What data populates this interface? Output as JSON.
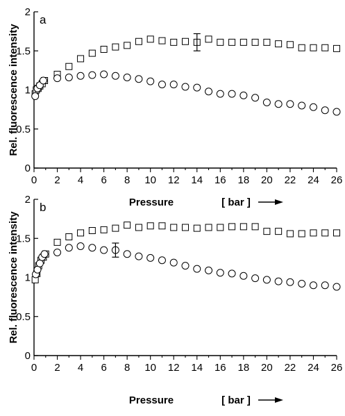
{
  "chart_data": [
    {
      "type": "scatter",
      "panel_label": "a",
      "xlabel": "Pressure",
      "xunit": "[ bar ]",
      "ylabel": "Rel. fluorescence intensity",
      "xlim": [
        0,
        26
      ],
      "ylim": [
        0,
        2
      ],
      "xticks": [
        0,
        2,
        4,
        6,
        8,
        10,
        12,
        14,
        16,
        18,
        20,
        22,
        24,
        26
      ],
      "yticks": [
        0,
        0.5,
        1,
        1.5,
        2
      ],
      "ytick_labels": [
        "0",
        "0.5",
        "1",
        "1.5",
        "2"
      ],
      "grid": false,
      "series": [
        {
          "marker": "square",
          "points": [
            [
              0.1,
              0.95
            ],
            [
              0.2,
              1.0
            ],
            [
              0.35,
              1.02
            ],
            [
              0.5,
              1.05
            ],
            [
              0.7,
              1.08
            ],
            [
              0.9,
              1.12
            ],
            [
              2,
              1.2
            ],
            [
              3,
              1.3
            ],
            [
              4,
              1.4
            ],
            [
              5,
              1.47
            ],
            [
              6,
              1.52
            ],
            [
              7,
              1.55
            ],
            [
              8,
              1.57
            ],
            [
              9,
              1.62
            ],
            [
              10,
              1.65
            ],
            [
              11,
              1.63
            ],
            [
              12,
              1.61
            ],
            [
              13,
              1.62
            ],
            [
              14,
              1.61
            ],
            [
              15,
              1.65
            ],
            [
              16,
              1.61
            ],
            [
              17,
              1.61
            ],
            [
              18,
              1.61
            ],
            [
              19,
              1.61
            ],
            [
              20,
              1.61
            ],
            [
              21,
              1.59
            ],
            [
              22,
              1.58
            ],
            [
              23,
              1.54
            ],
            [
              24,
              1.54
            ],
            [
              25,
              1.54
            ],
            [
              26,
              1.53
            ]
          ],
          "error_bars": [
            {
              "x": 14,
              "y": 1.61,
              "low": 1.5,
              "high": 1.72
            }
          ]
        },
        {
          "marker": "circle",
          "points": [
            [
              0.1,
              0.92
            ],
            [
              0.3,
              1.02
            ],
            [
              0.5,
              1.06
            ],
            [
              0.8,
              1.12
            ],
            [
              2,
              1.15
            ],
            [
              3,
              1.16
            ],
            [
              4,
              1.18
            ],
            [
              5,
              1.19
            ],
            [
              6,
              1.2
            ],
            [
              7,
              1.18
            ],
            [
              8,
              1.16
            ],
            [
              9,
              1.14
            ],
            [
              10,
              1.11
            ],
            [
              11,
              1.07
            ],
            [
              12,
              1.07
            ],
            [
              13,
              1.04
            ],
            [
              14,
              1.03
            ],
            [
              15,
              0.98
            ],
            [
              16,
              0.95
            ],
            [
              17,
              0.95
            ],
            [
              18,
              0.93
            ],
            [
              19,
              0.9
            ],
            [
              20,
              0.84
            ],
            [
              21,
              0.82
            ],
            [
              22,
              0.82
            ],
            [
              23,
              0.8
            ],
            [
              24,
              0.78
            ],
            [
              25,
              0.74
            ],
            [
              26,
              0.72
            ]
          ]
        }
      ]
    },
    {
      "type": "scatter",
      "panel_label": "b",
      "xlabel": "Pressure",
      "xunit": "[ bar ]",
      "ylabel": "Rel. fluorescence intensity",
      "xlim": [
        0,
        26
      ],
      "ylim": [
        0,
        2
      ],
      "xticks": [
        0,
        2,
        4,
        6,
        8,
        10,
        12,
        14,
        16,
        18,
        20,
        22,
        24,
        26
      ],
      "yticks": [
        0,
        0.5,
        1,
        1.5,
        2
      ],
      "ytick_labels": [
        "0",
        "0.5",
        "1",
        "1.5",
        "2"
      ],
      "grid": false,
      "series": [
        {
          "marker": "square",
          "points": [
            [
              0.1,
              0.97
            ],
            [
              0.25,
              1.05
            ],
            [
              0.4,
              1.15
            ],
            [
              0.6,
              1.22
            ],
            [
              0.8,
              1.26
            ],
            [
              1,
              1.3
            ],
            [
              2,
              1.45
            ],
            [
              3,
              1.52
            ],
            [
              4,
              1.57
            ],
            [
              5,
              1.6
            ],
            [
              6,
              1.61
            ],
            [
              7,
              1.63
            ],
            [
              8,
              1.67
            ],
            [
              9,
              1.64
            ],
            [
              10,
              1.66
            ],
            [
              11,
              1.66
            ],
            [
              12,
              1.64
            ],
            [
              13,
              1.64
            ],
            [
              14,
              1.63
            ],
            [
              15,
              1.64
            ],
            [
              16,
              1.64
            ],
            [
              17,
              1.65
            ],
            [
              18,
              1.65
            ],
            [
              19,
              1.65
            ],
            [
              20,
              1.59
            ],
            [
              21,
              1.59
            ],
            [
              22,
              1.56
            ],
            [
              23,
              1.56
            ],
            [
              24,
              1.57
            ],
            [
              25,
              1.57
            ],
            [
              26,
              1.57
            ]
          ]
        },
        {
          "marker": "circle",
          "points": [
            [
              0.15,
              1.04
            ],
            [
              0.3,
              1.1
            ],
            [
              0.5,
              1.18
            ],
            [
              0.7,
              1.26
            ],
            [
              0.9,
              1.3
            ],
            [
              2,
              1.32
            ],
            [
              3,
              1.38
            ],
            [
              4,
              1.4
            ],
            [
              5,
              1.38
            ],
            [
              6,
              1.35
            ],
            [
              7,
              1.35
            ],
            [
              8,
              1.3
            ],
            [
              9,
              1.27
            ],
            [
              10,
              1.25
            ],
            [
              11,
              1.22
            ],
            [
              12,
              1.19
            ],
            [
              13,
              1.15
            ],
            [
              14,
              1.11
            ],
            [
              15,
              1.09
            ],
            [
              16,
              1.06
            ],
            [
              17,
              1.05
            ],
            [
              18,
              1.02
            ],
            [
              19,
              0.99
            ],
            [
              20,
              0.97
            ],
            [
              21,
              0.95
            ],
            [
              22,
              0.94
            ],
            [
              23,
              0.92
            ],
            [
              24,
              0.9
            ],
            [
              25,
              0.9
            ],
            [
              26,
              0.88
            ]
          ],
          "error_bars": [
            {
              "x": 7,
              "y": 1.35,
              "low": 1.26,
              "high": 1.44
            }
          ]
        }
      ]
    }
  ]
}
